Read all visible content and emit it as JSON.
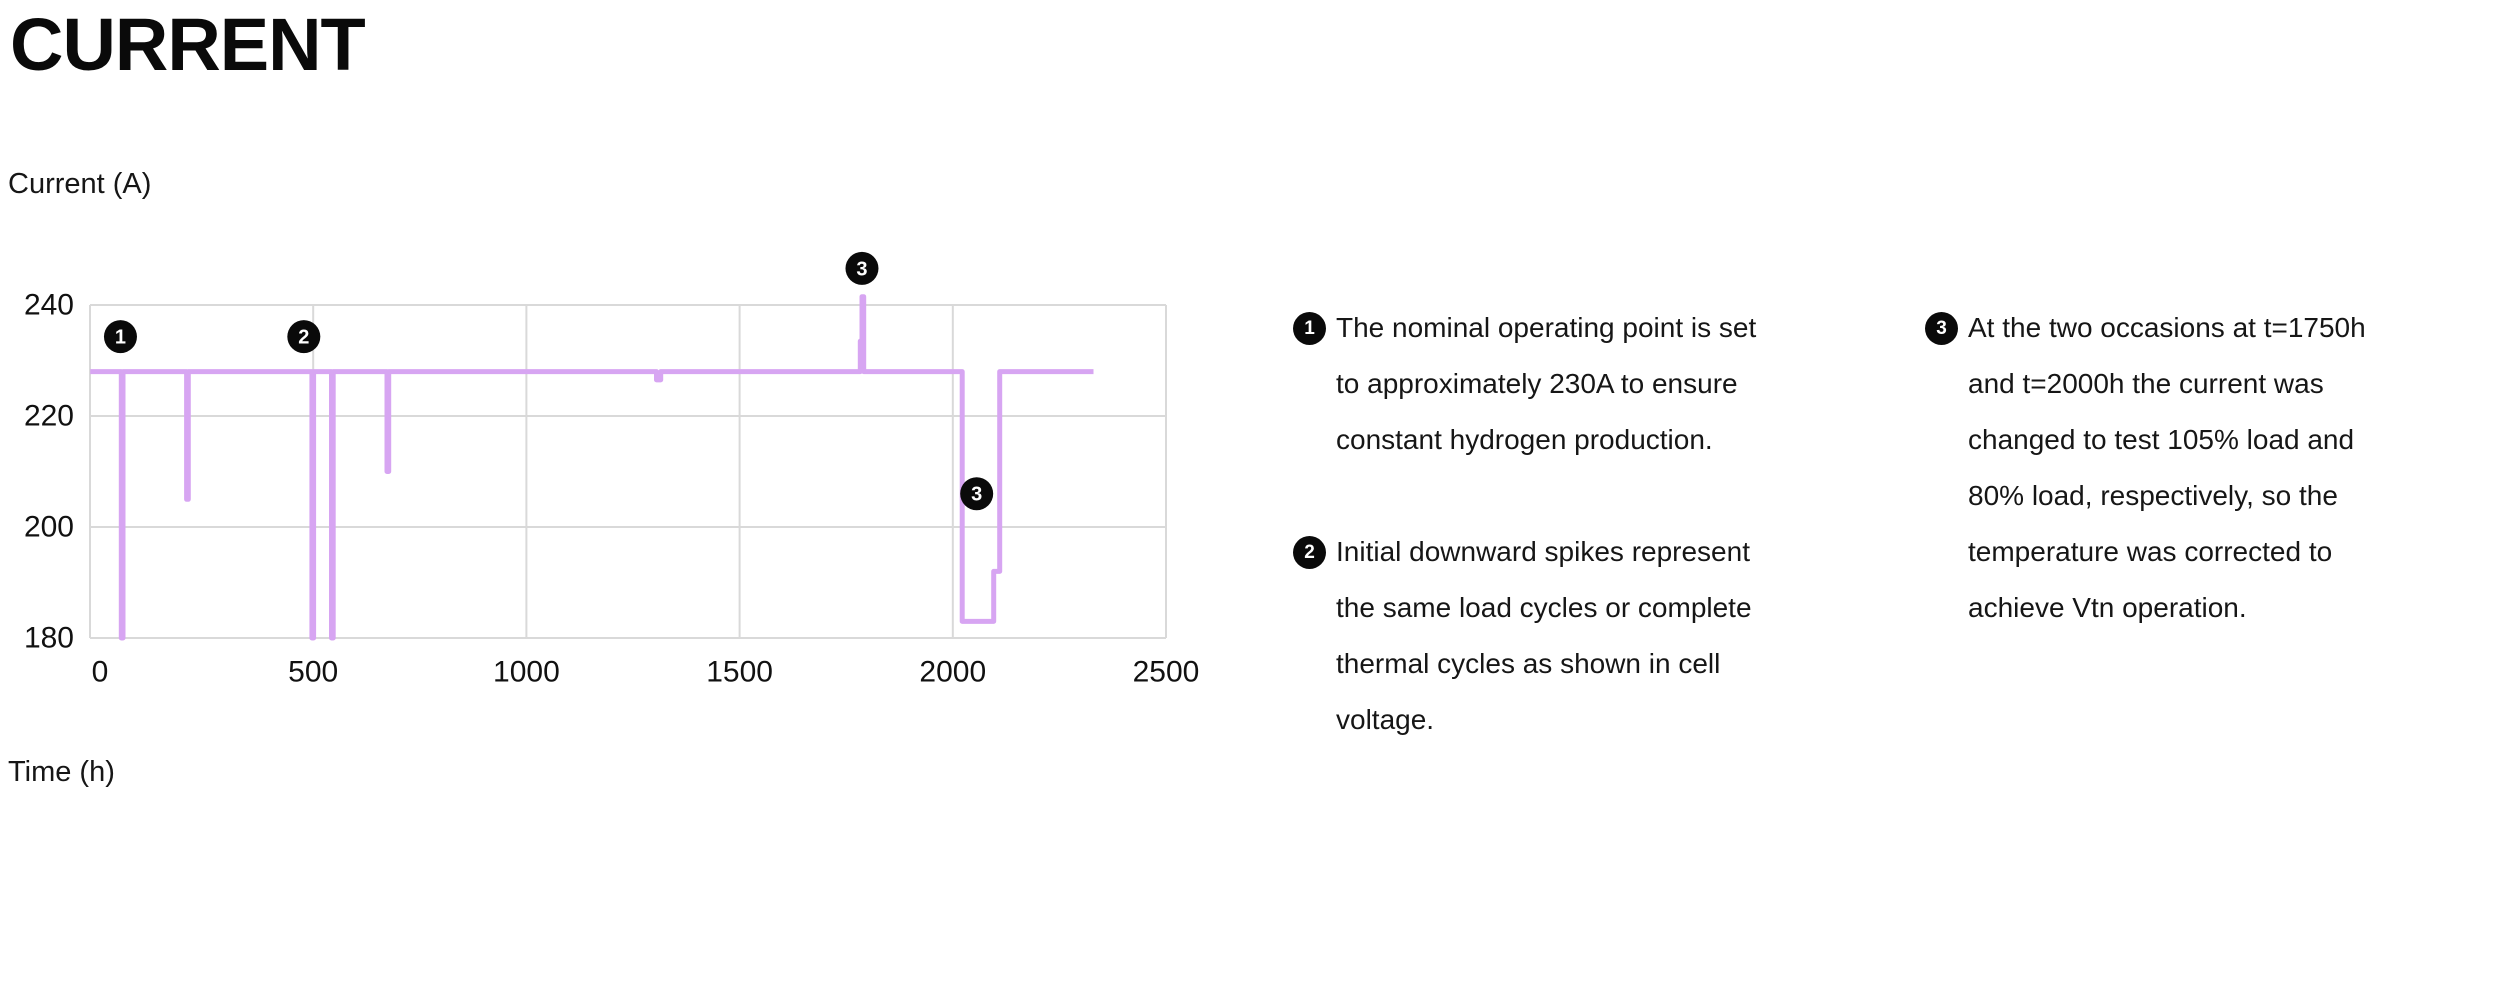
{
  "header": {
    "title": "CURRENT"
  },
  "chart": {
    "ylabel": "Current (A)",
    "xlabel": "Time (h)"
  },
  "chart_data": {
    "type": "line",
    "title": "CURRENT",
    "ylabel": "Current (A)",
    "xlabel": "Time (h)",
    "x_ticks": [
      0,
      500,
      1000,
      1500,
      2000,
      2500
    ],
    "y_ticks": [
      180,
      200,
      220,
      240
    ],
    "xlim": [
      -25,
      2500
    ],
    "ylim": [
      180,
      240
    ],
    "grid": true,
    "legend_position": "none",
    "nominal_current_a": 228,
    "colors": {
      "line": "#d7a5f2",
      "grid": "#d9d9d9",
      "badge": "#0a0a0a",
      "text": "#111111"
    },
    "series": [
      {
        "name": "Current (A)",
        "points": [
          [
            -23,
            228
          ],
          [
            50,
            228
          ],
          [
            50,
            180
          ],
          [
            54,
            180
          ],
          [
            54,
            228
          ],
          [
            203,
            228
          ],
          [
            203,
            205
          ],
          [
            207,
            205
          ],
          [
            207,
            228
          ],
          [
            497,
            228
          ],
          [
            497,
            180
          ],
          [
            501,
            180
          ],
          [
            501,
            228
          ],
          [
            543,
            228
          ],
          [
            543,
            180
          ],
          [
            547,
            180
          ],
          [
            547,
            228
          ],
          [
            673,
            228
          ],
          [
            673,
            210
          ],
          [
            677,
            210
          ],
          [
            677,
            228
          ],
          [
            1305,
            228
          ],
          [
            1305,
            226.5
          ],
          [
            1315,
            226.5
          ],
          [
            1315,
            228
          ],
          [
            1783,
            228
          ],
          [
            1783,
            233.5
          ],
          [
            1787,
            233.5
          ],
          [
            1787,
            241.5
          ],
          [
            1791,
            241.5
          ],
          [
            1791,
            228
          ],
          [
            2022,
            228
          ],
          [
            2022,
            183
          ],
          [
            2096,
            183
          ],
          [
            2096,
            192
          ],
          [
            2110,
            192
          ],
          [
            2110,
            228
          ],
          [
            2330,
            228
          ]
        ]
      }
    ],
    "markers": [
      {
        "label": "1",
        "t": 48,
        "a": 234.3
      },
      {
        "label": "2",
        "t": 478,
        "a": 234.3
      },
      {
        "label": "3",
        "t": 1787,
        "a": 246.6
      },
      {
        "label": "3",
        "t": 2056,
        "a": 206
      }
    ]
  },
  "annotations": {
    "items": [
      {
        "num": "1",
        "text": "The nominal operating point is set\nto approximately 230A to ensure\nconstant hydrogen production."
      },
      {
        "num": "2",
        "text": "Initial downward spikes represent\nthe same load cycles or complete\nthermal cycles as shown in cell\nvoltage."
      },
      {
        "num": "3",
        "text": "At the two occasions at t=1750h\nand t=2000h the current was\nchanged to test 105% load and\n80% load, respectively, so the\ntemperature was corrected to\nachieve Vtn operation."
      }
    ]
  }
}
